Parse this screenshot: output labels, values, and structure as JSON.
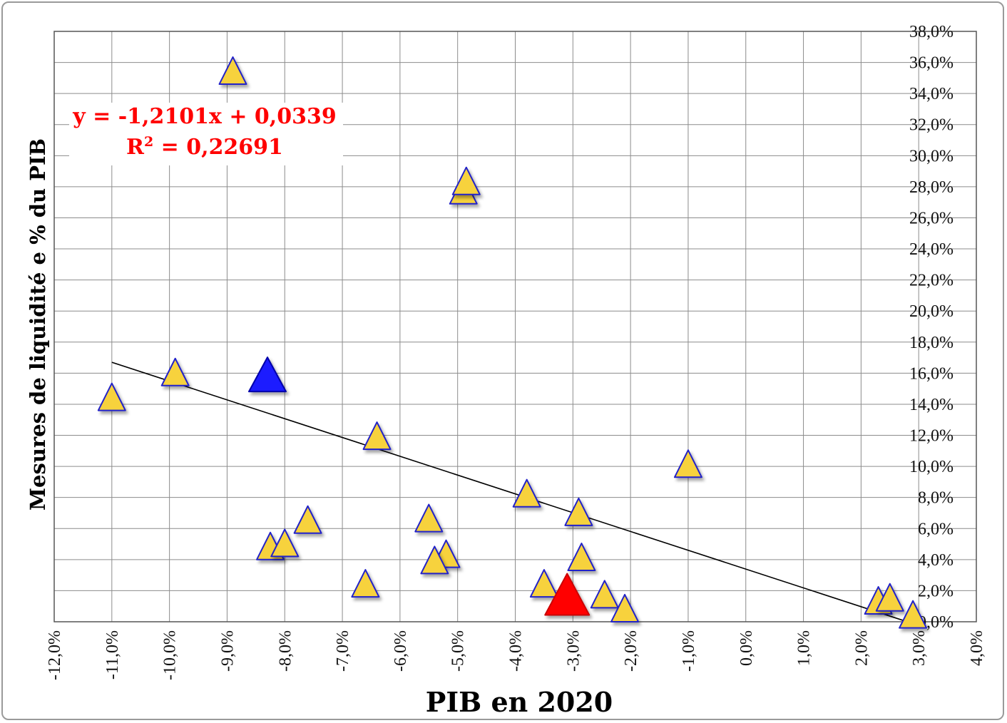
{
  "chart_data": {
    "type": "scatter",
    "xlabel": "PIB en 2020",
    "ylabel": "Mesures de liquidité e % du PIB",
    "xlim": [
      -0.12,
      0.04
    ],
    "ylim": [
      0.0,
      0.38
    ],
    "x_ticks": [
      "-12,0%",
      "-11,0%",
      "-10,0%",
      "-9,0%",
      "-8,0%",
      "-7,0%",
      "-6,0%",
      "-5,0%",
      "-4,0%",
      "-3,0%",
      "-2,0%",
      "-1,0%",
      "0,0%",
      "1,0%",
      "2,0%",
      "3,0%",
      "4,0%"
    ],
    "y_ticks": [
      "0,0%",
      "2,0%",
      "4,0%",
      "6,0%",
      "8,0%",
      "10,0%",
      "12,0%",
      "14,0%",
      "16,0%",
      "18,0%",
      "20,0%",
      "22,0%",
      "24,0%",
      "26,0%",
      "28,0%",
      "30,0%",
      "32,0%",
      "34,0%",
      "36,0%",
      "38,0%"
    ],
    "grid": true,
    "y_axis_position": "right",
    "marker": "triangle",
    "colors": {
      "default": "#f7d23e",
      "outline": "#2323c8",
      "highlight_blue": "#1a1aff",
      "highlight_red": "#ff0000",
      "trendline": "#000000",
      "equation": "#ff0000"
    },
    "points": [
      {
        "x": -0.089,
        "y": 0.353,
        "color": "default"
      },
      {
        "x": -0.049,
        "y": 0.276,
        "color": "default"
      },
      {
        "x": -0.0485,
        "y": 0.282,
        "color": "default"
      },
      {
        "x": -0.11,
        "y": 0.143,
        "color": "default"
      },
      {
        "x": -0.099,
        "y": 0.159,
        "color": "default"
      },
      {
        "x": -0.083,
        "y": 0.157,
        "color": "highlight_blue"
      },
      {
        "x": -0.064,
        "y": 0.118,
        "color": "default"
      },
      {
        "x": -0.01,
        "y": 0.1,
        "color": "default"
      },
      {
        "x": -0.038,
        "y": 0.081,
        "color": "default"
      },
      {
        "x": -0.029,
        "y": 0.069,
        "color": "default"
      },
      {
        "x": -0.076,
        "y": 0.064,
        "color": "default"
      },
      {
        "x": -0.055,
        "y": 0.065,
        "color": "default"
      },
      {
        "x": -0.0825,
        "y": 0.047,
        "color": "default"
      },
      {
        "x": -0.08,
        "y": 0.049,
        "color": "default"
      },
      {
        "x": -0.052,
        "y": 0.042,
        "color": "default"
      },
      {
        "x": -0.054,
        "y": 0.038,
        "color": "default"
      },
      {
        "x": -0.0285,
        "y": 0.04,
        "color": "default"
      },
      {
        "x": -0.066,
        "y": 0.023,
        "color": "default"
      },
      {
        "x": -0.035,
        "y": 0.023,
        "color": "default"
      },
      {
        "x": -0.031,
        "y": 0.015,
        "color": "highlight_red"
      },
      {
        "x": -0.0245,
        "y": 0.016,
        "color": "default"
      },
      {
        "x": -0.021,
        "y": 0.007,
        "color": "default"
      },
      {
        "x": 0.023,
        "y": 0.012,
        "color": "default"
      },
      {
        "x": 0.025,
        "y": 0.014,
        "color": "default"
      },
      {
        "x": 0.029,
        "y": 0.003,
        "color": "default"
      }
    ],
    "trendline": {
      "slope": -1.2101,
      "intercept": 0.0339,
      "x_range": [
        -0.11,
        0.029
      ]
    },
    "annotation": {
      "line1": "y = -1,2101x + 0,0339",
      "line2_prefix": "R",
      "line2_sup": "2",
      "line2_suffix": " = 0,22691"
    }
  }
}
